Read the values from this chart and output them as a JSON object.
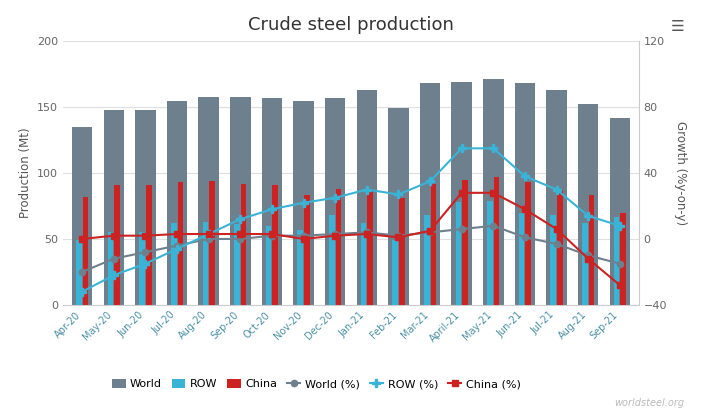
{
  "categories": [
    "Apr-20",
    "May-20",
    "Jun-20",
    "Jul-20",
    "Aug-20",
    "Sep-20",
    "Oct-20",
    "Nov-20",
    "Dec-20",
    "Jan-21",
    "Feb-21",
    "Mar-21",
    "April-21",
    "May-21",
    "Jun-21",
    "Jul-21",
    "Aug-21",
    "Sep-21"
  ],
  "world": [
    135,
    148,
    148,
    155,
    158,
    158,
    157,
    155,
    157,
    163,
    149,
    168,
    169,
    171,
    168,
    163,
    152,
    142
  ],
  "row": [
    49,
    55,
    55,
    62,
    63,
    61,
    60,
    57,
    68,
    62,
    49,
    68,
    78,
    79,
    70,
    68,
    62,
    67
  ],
  "china": [
    82,
    91,
    91,
    93,
    94,
    92,
    91,
    83,
    88,
    88,
    81,
    92,
    95,
    97,
    93,
    87,
    83,
    70
  ],
  "world_pct": [
    -20,
    -12,
    -8,
    -4,
    0,
    0,
    2,
    2,
    3,
    4,
    2,
    4,
    6,
    8,
    1,
    -3,
    -10,
    -15
  ],
  "row_pct": [
    -32,
    -22,
    -15,
    -6,
    3,
    12,
    18,
    22,
    25,
    30,
    27,
    35,
    55,
    55,
    38,
    30,
    14,
    8
  ],
  "china_pct": [
    0,
    2,
    2,
    3,
    3,
    3,
    3,
    0,
    2,
    3,
    1,
    5,
    28,
    28,
    18,
    6,
    -12,
    -28
  ],
  "title": "Crude steel production",
  "ylabel_left": "Production (Mt)",
  "ylabel_right": "Growth (%y-on-y)",
  "ylim_left": [
    0,
    200
  ],
  "ylim_right": [
    -40,
    120
  ],
  "yticks_left": [
    0,
    50,
    100,
    150,
    200
  ],
  "yticks_right": [
    -40,
    0,
    40,
    80,
    120
  ],
  "world_color": "#6e7f8e",
  "row_color": "#3ab4d6",
  "china_color": "#cc2222",
  "bg_color": "#ffffff",
  "grid_color": "#e0e0e0",
  "watermark": "worldsteel.org"
}
